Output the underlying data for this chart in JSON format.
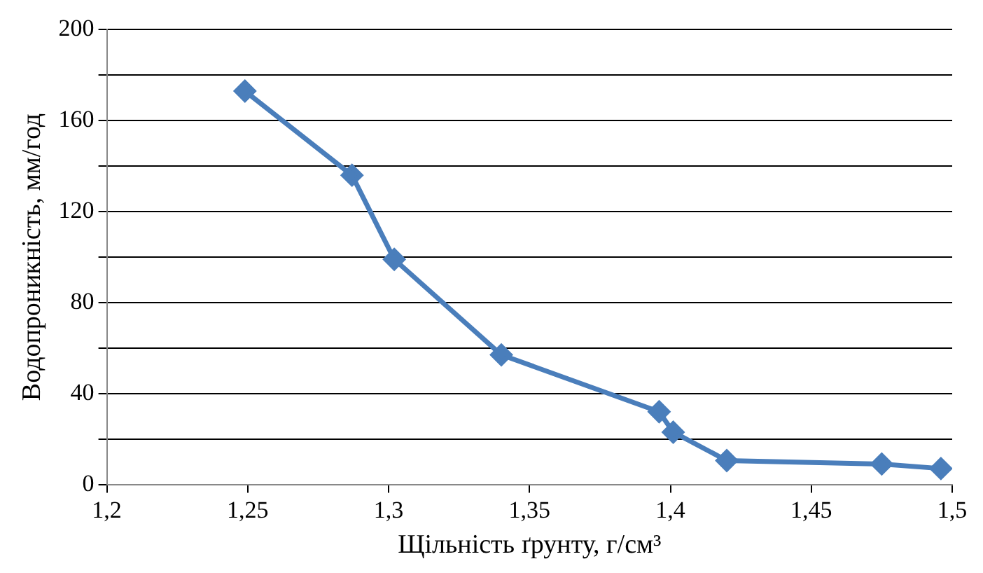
{
  "chart_data": {
    "type": "line",
    "xlabel": "Щільність ґрунту, г/см³",
    "ylabel": "Водопроникність, мм/год",
    "x": [
      1.249,
      1.287,
      1.302,
      1.34,
      1.396,
      1.401,
      1.42,
      1.475,
      1.496
    ],
    "series": [
      {
        "color": "#4a7ebb",
        "values": [
          173,
          136,
          99,
          57,
          32,
          23,
          10.5,
          9,
          7
        ]
      }
    ],
    "xlim": [
      1.2,
      1.5
    ],
    "xticks": [
      {
        "value": 1.2,
        "label": "1,2"
      },
      {
        "value": 1.25,
        "label": "1,25"
      },
      {
        "value": 1.3,
        "label": "1,3"
      },
      {
        "value": 1.35,
        "label": "1,35"
      },
      {
        "value": 1.4,
        "label": "1,4"
      },
      {
        "value": 1.45,
        "label": "1,45"
      },
      {
        "value": 1.5,
        "label": "1,5"
      }
    ],
    "ylim": [
      0,
      200
    ],
    "yticks": [
      0,
      {
        "value": 20,
        "label": null
      },
      40,
      {
        "value": 60,
        "label": null
      },
      80,
      {
        "value": 100,
        "label": null
      },
      120,
      {
        "value": 140,
        "label": null
      },
      160,
      {
        "value": 180,
        "label": null
      },
      200
    ],
    "grid": "y",
    "legend": false,
    "marker": "diamond",
    "line_style": "solid"
  }
}
